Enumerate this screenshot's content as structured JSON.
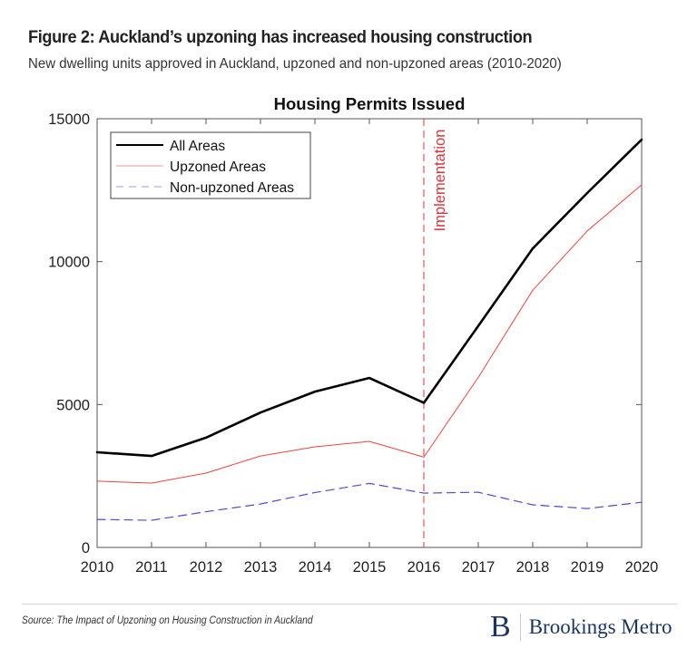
{
  "figure": {
    "title": "Figure 2: Auckland’s upzoning has increased housing construction",
    "subtitle": "New dwelling units approved in Auckland, upzoned and non-upzoned areas (2010-2020)"
  },
  "chart_data": {
    "type": "line",
    "title": "Housing Permits Issued",
    "xlabel": "",
    "ylabel": "",
    "x": [
      2010,
      2011,
      2012,
      2013,
      2014,
      2015,
      2016,
      2017,
      2018,
      2019,
      2020
    ],
    "xlim": [
      2010,
      2020
    ],
    "ylim": [
      0,
      15000
    ],
    "xticks": [
      2010,
      2011,
      2012,
      2013,
      2014,
      2015,
      2016,
      2017,
      2018,
      2019,
      2020
    ],
    "yticks": [
      0,
      5000,
      10000,
      15000
    ],
    "grid": false,
    "legend_position": "top-left",
    "series": [
      {
        "name": "All Areas",
        "color": "#000000",
        "style": "solid",
        "values": [
          3330,
          3200,
          3840,
          4720,
          5450,
          5930,
          5060,
          7750,
          10460,
          12400,
          14270
        ]
      },
      {
        "name": "Upzoned Areas",
        "color": "#e8463f",
        "style": "solid",
        "values": [
          2320,
          2250,
          2600,
          3200,
          3520,
          3710,
          3160,
          5950,
          9000,
          11070,
          12690
        ]
      },
      {
        "name": "Non-upzoned Areas",
        "color": "#4a4ad0",
        "style": "dashed",
        "values": [
          980,
          950,
          1250,
          1520,
          1920,
          2240,
          1900,
          1930,
          1490,
          1360,
          1580
        ]
      }
    ],
    "annotations": [
      {
        "label": "Implementation",
        "x": 2016,
        "type": "vertical-line",
        "color": "#d9343a",
        "style": "dashed"
      }
    ]
  },
  "footer": {
    "source": "Source: The Impact of Upzoning on Housing Construction in Auckland",
    "brand_mark": "B",
    "brand_name": "Brookings Metro"
  },
  "colors": {
    "brand": "#1d3461",
    "axis": "#555555"
  }
}
